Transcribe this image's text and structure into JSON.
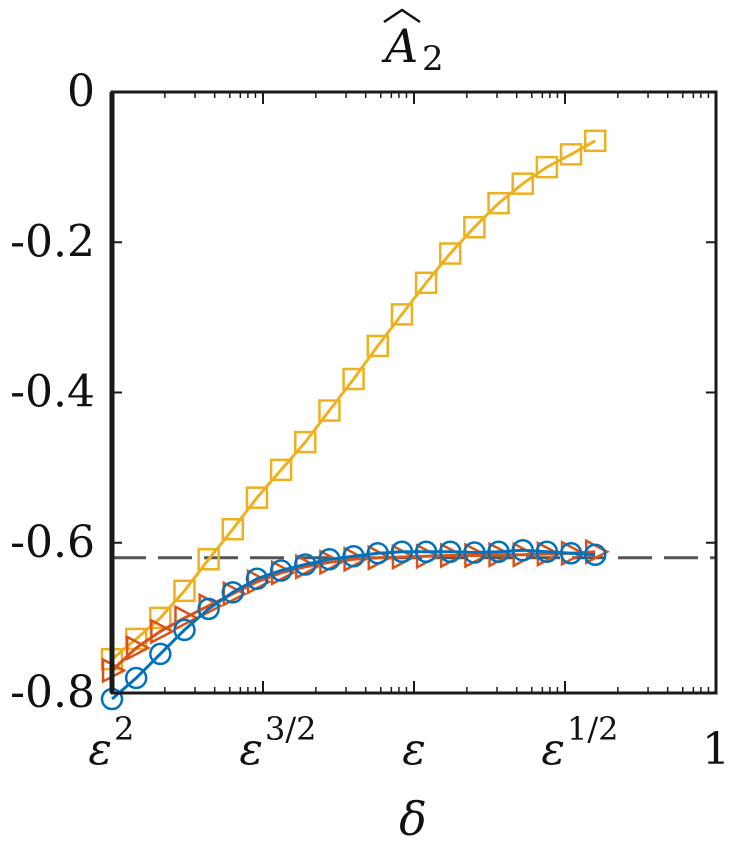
{
  "chart_data": {
    "type": "line",
    "title": "Â₂",
    "title_base": "A",
    "title_sub": "2",
    "xlabel": "δ",
    "ylabel": "",
    "x_scale": "log",
    "x_ticks": [
      {
        "base": "ε",
        "sup": "2"
      },
      {
        "base": "ε",
        "sup": "3/2"
      },
      {
        "base": "ε",
        "sup": ""
      },
      {
        "base": "ε",
        "sup": "1/2"
      },
      {
        "base": "1",
        "sup": ""
      }
    ],
    "y_ticks": [
      "0",
      "-0.2",
      "-0.4",
      "-0.6",
      "-0.8"
    ],
    "y_tick_values": [
      0,
      -0.2,
      -0.4,
      -0.6,
      -0.8
    ],
    "ylim": [
      -0.8,
      0
    ],
    "xlim_in_eps_power": [
      2,
      0
    ],
    "grid": false,
    "legend": "none",
    "reference_line": {
      "y": -0.62,
      "style": "dashed",
      "color": "#555555"
    },
    "series": [
      {
        "marker": "square",
        "color": "#EDB120",
        "eps_power": [
          2.0,
          1.875,
          1.75,
          1.625,
          1.5,
          1.375,
          1.25,
          1.125,
          1.0,
          0.875,
          0.75,
          0.625,
          0.5,
          0.375,
          0.25,
          0.125,
          0.0
        ],
        "points": [
          [
            2.0,
            -0.755
          ],
          [
            1.92,
            -0.728
          ],
          [
            1.84,
            -0.7
          ],
          [
            1.76,
            -0.664
          ],
          [
            1.68,
            -0.622
          ],
          [
            1.6,
            -0.582
          ],
          [
            1.52,
            -0.54
          ],
          [
            1.44,
            -0.503
          ],
          [
            1.36,
            -0.466
          ],
          [
            1.28,
            -0.424
          ],
          [
            1.2,
            -0.382
          ],
          [
            1.12,
            -0.338
          ],
          [
            1.04,
            -0.296
          ],
          [
            0.96,
            -0.254
          ],
          [
            0.88,
            -0.215
          ],
          [
            0.8,
            -0.18
          ],
          [
            0.72,
            -0.148
          ],
          [
            0.64,
            -0.122
          ],
          [
            0.56,
            -0.1
          ],
          [
            0.48,
            -0.083
          ],
          [
            0.4,
            -0.065
          ]
        ]
      },
      {
        "marker": "triangle-right",
        "color": "#D95319",
        "points": [
          [
            2.0,
            -0.77
          ],
          [
            1.92,
            -0.74
          ],
          [
            1.84,
            -0.718
          ],
          [
            1.76,
            -0.7
          ],
          [
            1.68,
            -0.684
          ],
          [
            1.6,
            -0.668
          ],
          [
            1.52,
            -0.652
          ],
          [
            1.44,
            -0.64
          ],
          [
            1.36,
            -0.632
          ],
          [
            1.28,
            -0.626
          ],
          [
            1.2,
            -0.622
          ],
          [
            1.12,
            -0.62
          ],
          [
            1.04,
            -0.619
          ],
          [
            0.96,
            -0.618
          ],
          [
            0.88,
            -0.617
          ],
          [
            0.8,
            -0.617
          ],
          [
            0.72,
            -0.616
          ],
          [
            0.64,
            -0.616
          ],
          [
            0.56,
            -0.615
          ],
          [
            0.48,
            -0.614
          ],
          [
            0.4,
            -0.612
          ]
        ]
      },
      {
        "marker": "circle",
        "color": "#0072BD",
        "points": [
          [
            2.0,
            -0.808
          ],
          [
            1.92,
            -0.78
          ],
          [
            1.84,
            -0.748
          ],
          [
            1.76,
            -0.716
          ],
          [
            1.68,
            -0.688
          ],
          [
            1.6,
            -0.666
          ],
          [
            1.52,
            -0.648
          ],
          [
            1.44,
            -0.637
          ],
          [
            1.36,
            -0.629
          ],
          [
            1.28,
            -0.622
          ],
          [
            1.2,
            -0.618
          ],
          [
            1.12,
            -0.614
          ],
          [
            1.04,
            -0.612
          ],
          [
            0.96,
            -0.612
          ],
          [
            0.88,
            -0.612
          ],
          [
            0.8,
            -0.613
          ],
          [
            0.72,
            -0.612
          ],
          [
            0.64,
            -0.61
          ],
          [
            0.56,
            -0.612
          ],
          [
            0.48,
            -0.614
          ],
          [
            0.4,
            -0.616
          ]
        ]
      }
    ]
  }
}
